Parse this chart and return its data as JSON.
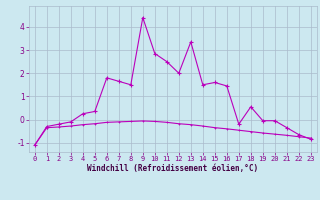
{
  "xlabel": "Windchill (Refroidissement éolien,°C)",
  "background_color": "#cce8f0",
  "grid_color": "#aabbcc",
  "line_color": "#bb00bb",
  "xlim": [
    -0.5,
    23.5
  ],
  "ylim": [
    -1.4,
    4.9
  ],
  "xticks": [
    0,
    1,
    2,
    3,
    4,
    5,
    6,
    7,
    8,
    9,
    10,
    11,
    12,
    13,
    14,
    15,
    16,
    17,
    18,
    19,
    20,
    21,
    22,
    23
  ],
  "yticks": [
    -1,
    0,
    1,
    2,
    3,
    4
  ],
  "series1_x": [
    0,
    1,
    2,
    3,
    4,
    5,
    6,
    7,
    8,
    9,
    10,
    11,
    12,
    13,
    14,
    15,
    16,
    17,
    18,
    19,
    20,
    21,
    22,
    23
  ],
  "series1_y": [
    -1.1,
    -0.3,
    -0.2,
    -0.1,
    0.25,
    0.35,
    1.8,
    1.65,
    1.5,
    4.4,
    2.85,
    2.5,
    2.0,
    3.35,
    1.5,
    1.6,
    1.45,
    -0.2,
    0.55,
    -0.05,
    -0.05,
    -0.35,
    -0.65,
    -0.85
  ],
  "series2_x": [
    0,
    1,
    2,
    3,
    4,
    5,
    6,
    7,
    8,
    9,
    10,
    11,
    12,
    13,
    14,
    15,
    16,
    17,
    18,
    19,
    20,
    21,
    22,
    23
  ],
  "series2_y": [
    -1.1,
    -0.35,
    -0.32,
    -0.28,
    -0.22,
    -0.18,
    -0.12,
    -0.1,
    -0.08,
    -0.06,
    -0.08,
    -0.12,
    -0.18,
    -0.22,
    -0.28,
    -0.35,
    -0.4,
    -0.46,
    -0.52,
    -0.58,
    -0.63,
    -0.68,
    -0.74,
    -0.8
  ],
  "xlabel_fontsize": 5.5,
  "tick_fontsize": 5,
  "linewidth": 0.8,
  "markersize": 2.5
}
